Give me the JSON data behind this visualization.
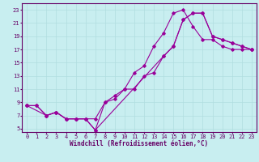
{
  "xlabel": "Windchill (Refroidissement éolien,°C)",
  "background_color": "#c8eef0",
  "grid_color": "#b0dde0",
  "line_color": "#990099",
  "xlim": [
    -0.5,
    23.5
  ],
  "ylim": [
    4.5,
    24.0
  ],
  "xticks": [
    0,
    1,
    2,
    3,
    4,
    5,
    6,
    7,
    8,
    9,
    10,
    11,
    12,
    13,
    14,
    15,
    16,
    17,
    18,
    19,
    20,
    21,
    22,
    23
  ],
  "yticks": [
    5,
    7,
    9,
    11,
    13,
    15,
    17,
    19,
    21,
    23
  ],
  "line1_x": [
    0,
    1,
    2,
    3,
    4,
    5,
    6,
    7,
    8,
    9,
    10,
    11,
    12,
    13,
    14,
    15,
    16,
    17,
    18,
    19,
    20,
    21,
    22,
    23
  ],
  "line1_y": [
    8.5,
    8.5,
    7.0,
    7.5,
    6.5,
    6.5,
    6.5,
    4.8,
    9.0,
    10.0,
    11.0,
    13.5,
    14.5,
    17.5,
    19.5,
    22.5,
    23.0,
    20.5,
    18.5,
    18.5,
    17.5,
    17.0,
    17.0,
    17.0
  ],
  "line2_x": [
    0,
    2,
    3,
    4,
    5,
    6,
    7,
    8,
    9,
    10,
    11,
    12,
    13,
    14,
    15,
    16,
    17,
    18,
    19,
    20,
    21,
    22,
    23
  ],
  "line2_y": [
    8.5,
    7.0,
    7.5,
    6.5,
    6.5,
    6.5,
    6.5,
    9.0,
    9.5,
    11.0,
    11.0,
    13.0,
    13.5,
    16.0,
    17.5,
    21.5,
    22.5,
    22.5,
    19.0,
    18.5,
    18.0,
    17.5,
    17.0
  ],
  "line3_x": [
    0,
    1,
    2,
    3,
    4,
    5,
    6,
    7,
    14,
    15,
    16,
    17,
    18,
    19,
    20,
    21,
    22,
    23
  ],
  "line3_y": [
    8.5,
    8.5,
    7.0,
    7.5,
    6.5,
    6.5,
    6.5,
    4.8,
    16.0,
    17.5,
    21.5,
    22.5,
    22.5,
    19.0,
    18.5,
    18.0,
    17.5,
    17.0
  ],
  "tick_fontsize": 5.0,
  "xlabel_fontsize": 5.5,
  "spine_color": "#660066",
  "tick_color": "#660066"
}
